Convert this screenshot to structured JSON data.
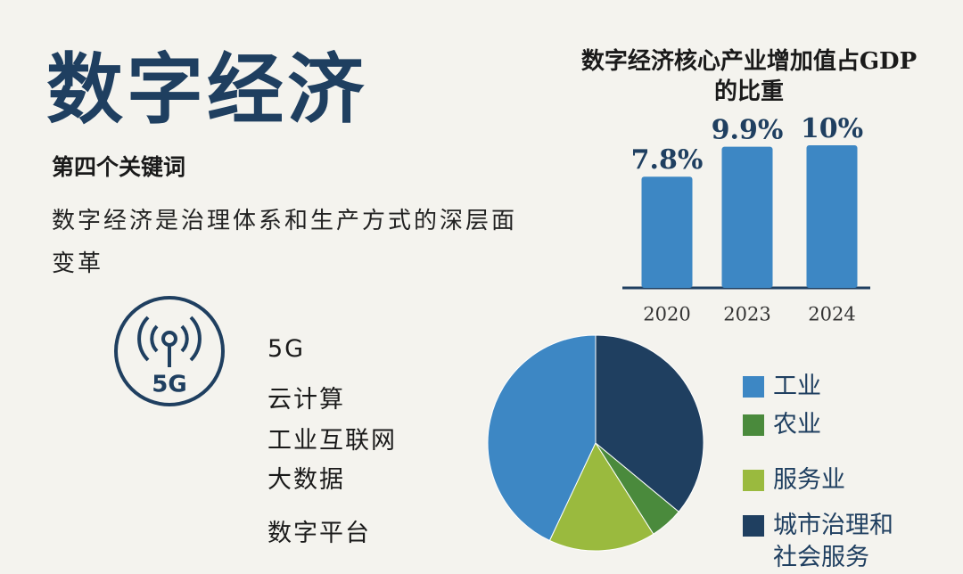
{
  "header": {
    "title": "数字经济",
    "subtitle": "第四个关键词",
    "description": "数字经济是治理体系和生产方式的深层面变革"
  },
  "icon": {
    "label": "5G"
  },
  "list": {
    "items": [
      "5G",
      "云计算",
      "工业互联网",
      "大数据",
      "数字平台"
    ]
  },
  "chart_data": [
    {
      "type": "bar",
      "title": "数字经济核心产业增加值占GDP的比重",
      "categories": [
        "2020",
        "2023",
        "2024"
      ],
      "values": [
        7.8,
        9.9,
        10
      ],
      "value_labels": [
        "7.8%",
        "9.9%",
        "10%"
      ],
      "color": "#3d87c4"
    },
    {
      "type": "pie",
      "categories": [
        "工业",
        "农业",
        "服务业",
        "城市治理和社会服务"
      ],
      "values": [
        43,
        5,
        16,
        36
      ],
      "colors": [
        "#3d87c4",
        "#4a8a3c",
        "#9aba3e",
        "#1f3f60"
      ]
    }
  ]
}
